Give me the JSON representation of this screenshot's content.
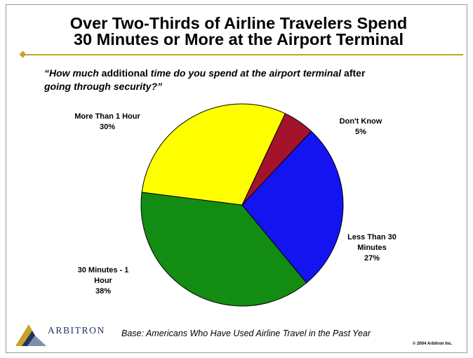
{
  "title": {
    "line1": "Over Two-Thirds of Airline Travelers Spend",
    "line2": "30 Minutes or More at the Airport Terminal"
  },
  "question": {
    "part1": "“How much",
    "part2": " additional ",
    "part3": "time do you spend at the airport terminal",
    "part4": " after",
    "part5": "going through security?”"
  },
  "chart_data": {
    "type": "pie",
    "slices": [
      {
        "name": "Don't Know",
        "label_lines": [
          "Don't Know",
          "5%"
        ],
        "value": 5,
        "color": "#a3132c"
      },
      {
        "name": "Less Than 30 Minutes",
        "label_lines": [
          "Less Than 30",
          "Minutes",
          "27%"
        ],
        "value": 27,
        "color": "#1414f0"
      },
      {
        "name": "30 Minutes - 1 Hour",
        "label_lines": [
          "30 Minutes - 1",
          "Hour",
          "38%"
        ],
        "value": 38,
        "color": "#138c13"
      },
      {
        "name": "More Than 1 Hour",
        "label_lines": [
          "More Than 1 Hour",
          "30%"
        ],
        "value": 30,
        "color": "#ffff00"
      }
    ]
  },
  "footer": {
    "logo_text": "ARBITRON",
    "base": "Base: Americans Who Have Used Airline Travel in the Past Year",
    "copyright": "© 2004 Arbitron Inc."
  },
  "colors": {
    "accent": "#c9a227",
    "logo": "#1f3361"
  }
}
